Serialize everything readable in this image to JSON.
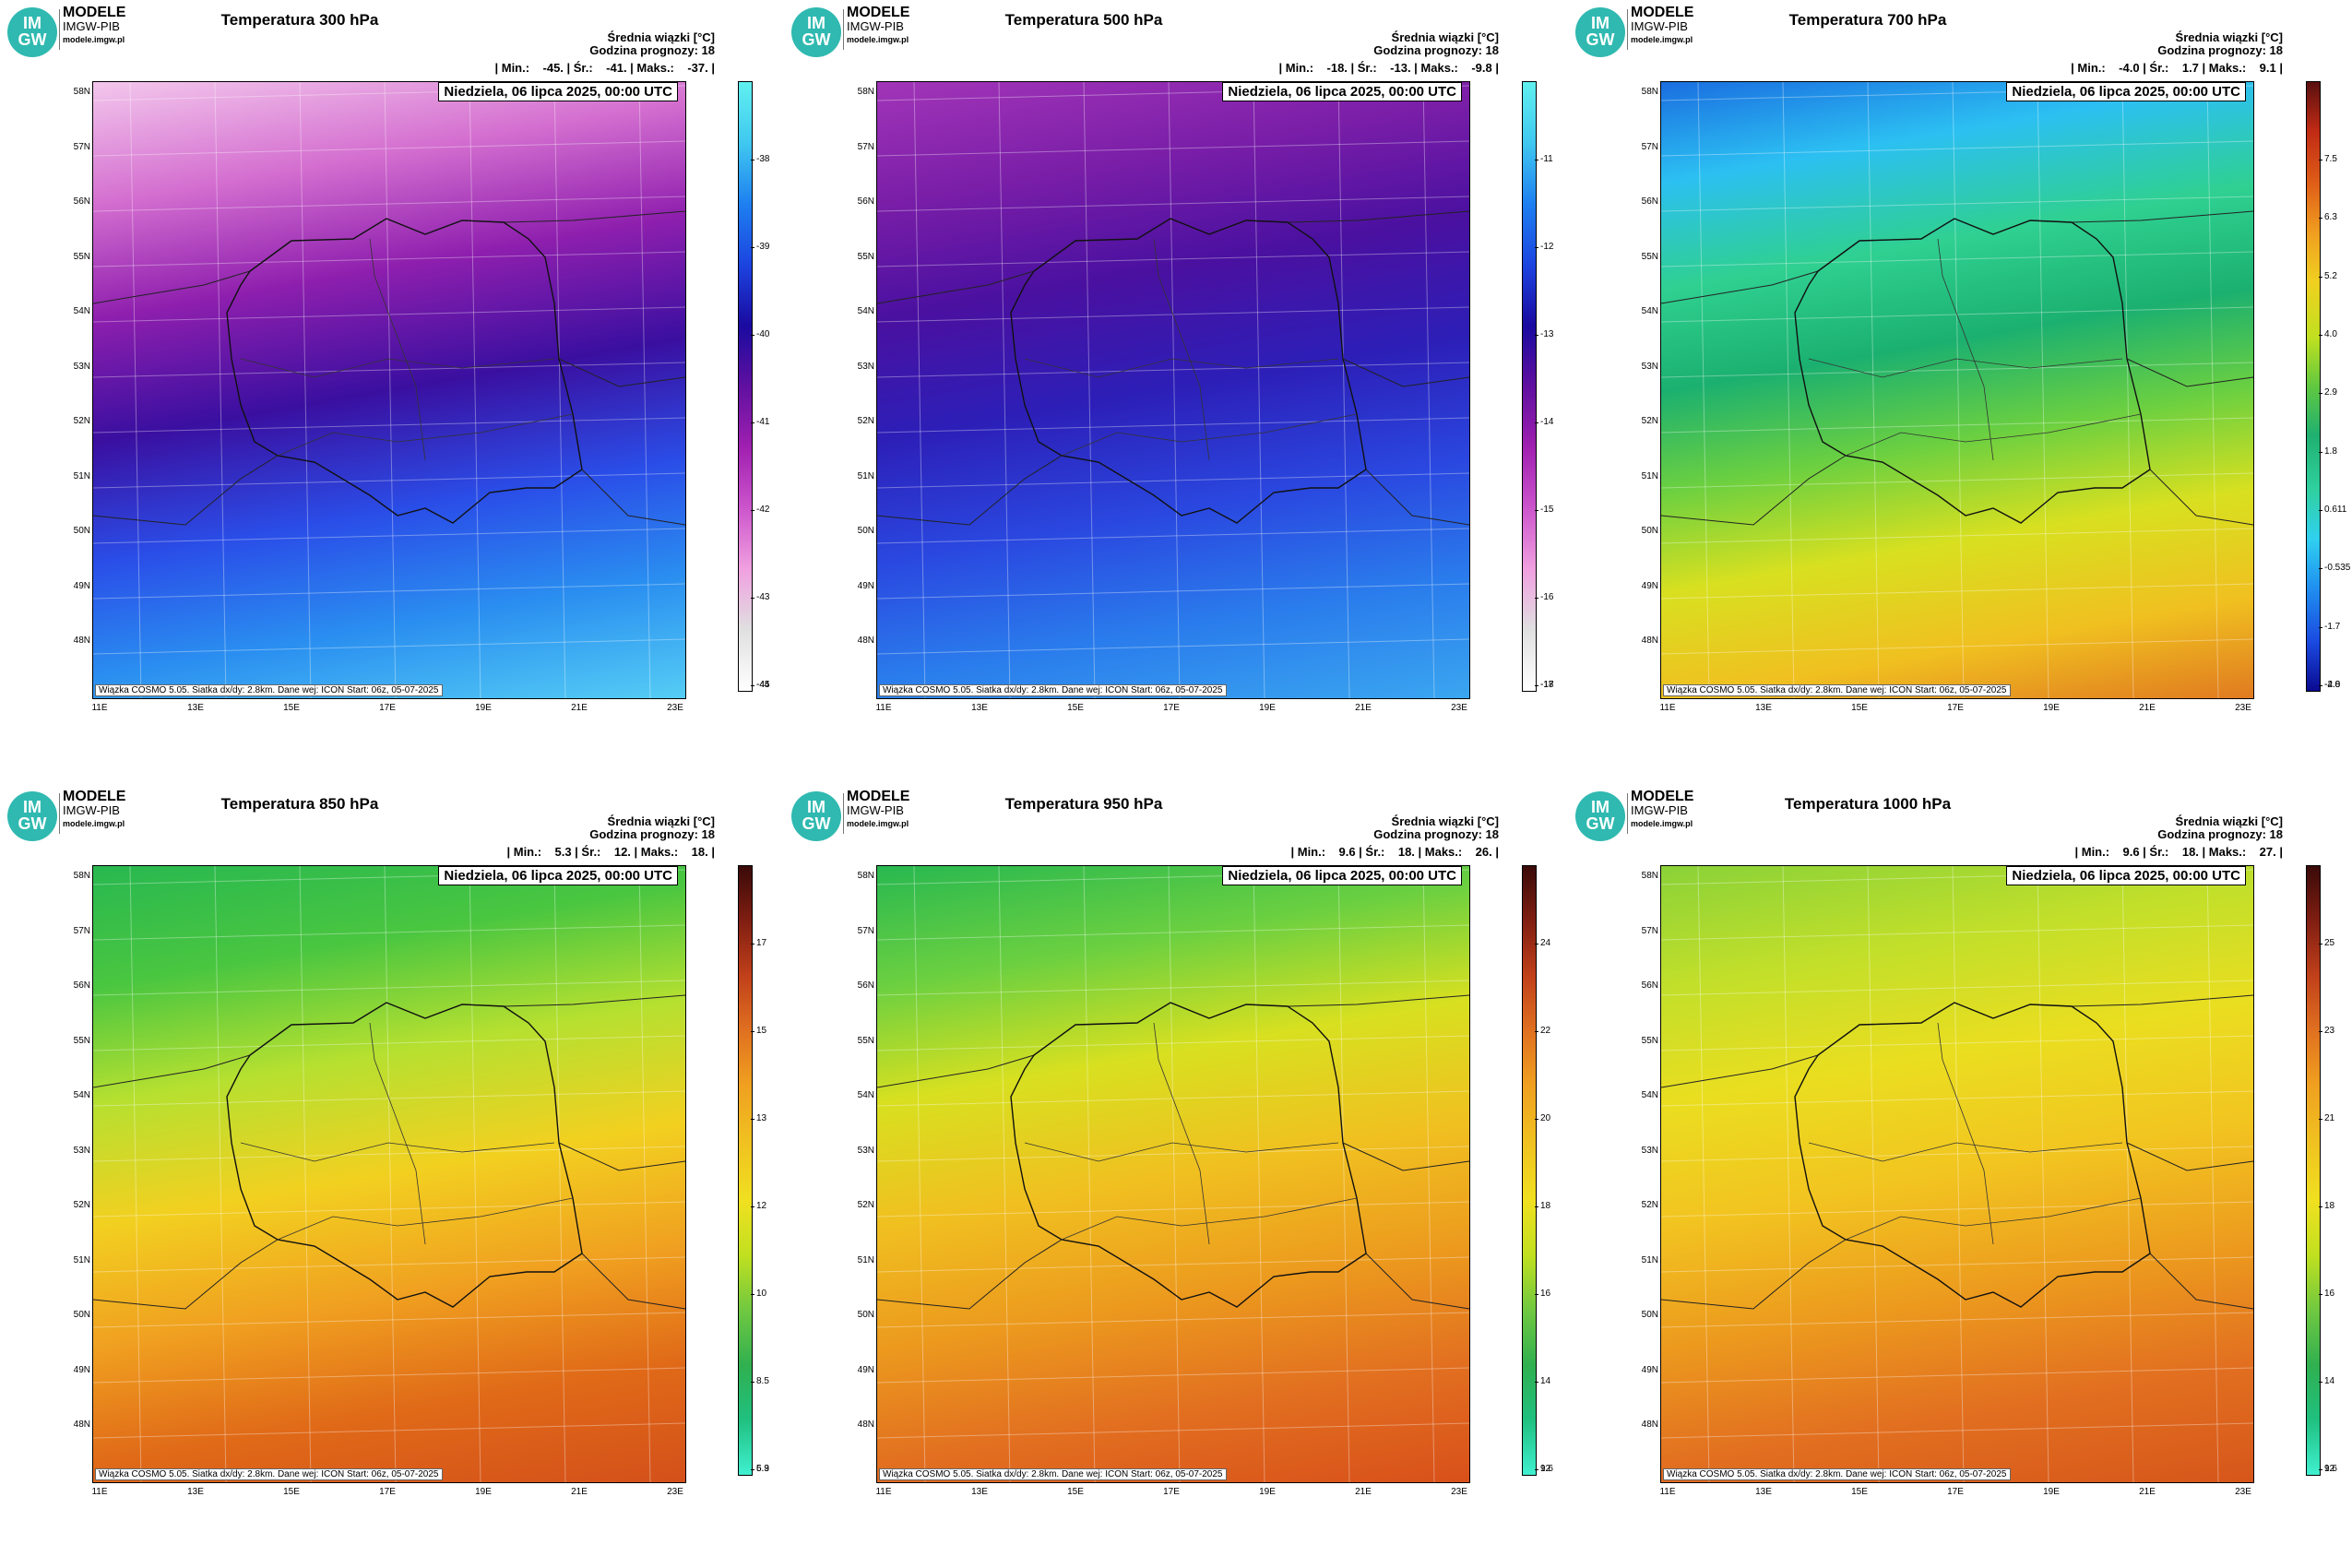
{
  "brand": {
    "logo": "IM GW",
    "name": "MODELE",
    "org": "IMGW-PIB",
    "url": "modele.imgw.pl"
  },
  "common": {
    "header1": "Średnia wiązki [°C]",
    "header2": "Godzina prognozy: 18",
    "date": "Niedziela, 06 lipca 2025, 00:00 UTC",
    "footer": "Wiązka COSMO 5.05. Siatka dx/dy: 2.8km. Dane wej: ICON Start: 06z, 05-07-2025",
    "lat_labels": [
      "58N",
      "57N",
      "56N",
      "55N",
      "54N",
      "53N",
      "52N",
      "51N",
      "50N",
      "49N",
      "48N"
    ],
    "lon_labels": [
      "11E",
      "13E",
      "15E",
      "17E",
      "19E",
      "21E",
      "23E"
    ]
  },
  "panels": [
    {
      "title": "Temperatura 300 hPa",
      "stats": "| Min.:    -45. | Śr.:    -41. | Maks.:    -37. |",
      "cbar": [
        "-38",
        "-39",
        "-40",
        "-41",
        "-42",
        "-43",
        "-44",
        "-45"
      ],
      "colors": [
        "#f3c7ec",
        "#d46fd0",
        "#8e1fae",
        "#3a0fa0",
        "#2a4ee8",
        "#2a8ff0",
        "#55cdf5"
      ]
    },
    {
      "title": "Temperatura 500 hPa",
      "stats": "| Min.:    -18. | Śr.:    -13. | Maks.:    -9.8 |",
      "cbar": [
        "-11",
        "-12",
        "-13",
        "-14",
        "-15",
        "-16",
        "-17",
        "-18"
      ],
      "colors": [
        "#a235b8",
        "#7a1ea8",
        "#4a10a0",
        "#2c1fb8",
        "#2a48e0",
        "#2a7cec",
        "#3aa6f0"
      ]
    },
    {
      "title": "Temperatura 700 hPa",
      "stats": "| Min.:    -4.0 | Śr.:    1.7 | Maks.:    9.1 |",
      "cbar": [
        "7.5",
        "6.3",
        "5.2",
        "4.0",
        "2.9",
        "1.8",
        "0.611",
        "-0.535",
        "-1.7",
        "-2.8",
        "-4.0"
      ],
      "colors": [
        "#1a6ee0",
        "#2cc0f2",
        "#2fd090",
        "#1bb070",
        "#6cd040",
        "#d8e020",
        "#f0c020",
        "#e07a20"
      ]
    },
    {
      "title": "Temperatura 850 hPa",
      "stats": "| Min.:    5.3 | Śr.:    12. | Maks.:    18. |",
      "cbar": [
        "17",
        "15",
        "13",
        "12",
        "10",
        "8.5",
        "6.9",
        "5.3"
      ],
      "colors": [
        "#28b850",
        "#4ac640",
        "#b6e030",
        "#f2d020",
        "#f0a020",
        "#e06a18",
        "#d4501a"
      ]
    },
    {
      "title": "Temperatura 950 hPa",
      "stats": "| Min.:    9.6 | Śr.:    18. | Maks.:    26. |",
      "cbar": [
        "24",
        "22",
        "20",
        "18",
        "16",
        "14",
        "12",
        "9.6"
      ],
      "colors": [
        "#28b850",
        "#6cd040",
        "#d8e020",
        "#f0c020",
        "#ec9a1e",
        "#e27020",
        "#d8501a"
      ]
    },
    {
      "title": "Temperatura 1000 hPa",
      "stats": "| Min.:    9.6 | Śr.:    18. | Maks.:    27. |",
      "cbar": [
        "25",
        "23",
        "21",
        "18",
        "16",
        "14",
        "12",
        "9.6"
      ],
      "colors": [
        "#8ad238",
        "#c2df2a",
        "#eade20",
        "#f2c420",
        "#ec9a1e",
        "#e27020",
        "#d6561a"
      ]
    }
  ]
}
